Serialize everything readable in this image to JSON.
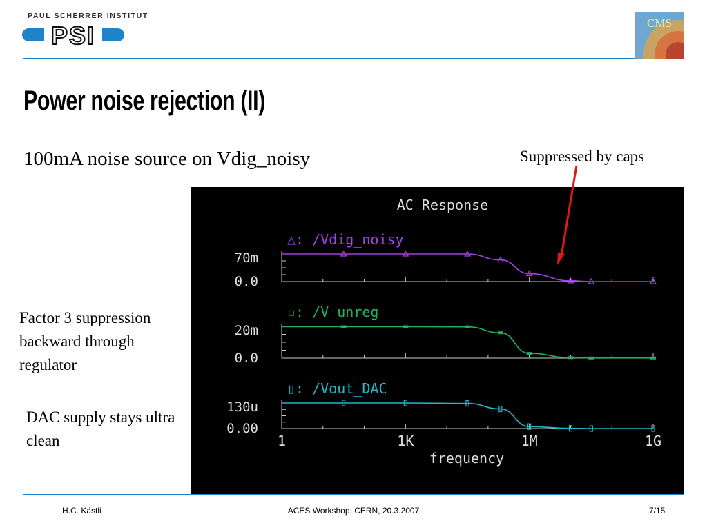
{
  "header": {
    "org_name": "PAUL SCHERRER INSTITUT",
    "logo_text": "PSI",
    "cms_logo_text": "CMS"
  },
  "slide": {
    "title": "Power noise rejection (II)",
    "subtitle": "100mA noise source on Vdig_noisy",
    "callout": "Suppressed by caps",
    "note_1": "Factor 3 suppression backward through regulator",
    "note_2": "DAC supply stays ultra clean"
  },
  "chart_data": {
    "type": "line",
    "title": "AC Response",
    "xlabel": "frequency",
    "x_scale": "log",
    "x_ticks": [
      "1",
      "1K",
      "1M",
      "1G"
    ],
    "x_tick_values": [
      1,
      1000,
      1000000,
      1000000000
    ],
    "background": "#000000",
    "panels": [
      {
        "name": "/Vdig_noisy",
        "marker": "triangle",
        "color": "#a040e0",
        "y_top_label": "70m",
        "y_bottom_label": "0.0",
        "ylim": [
          0,
          0.07
        ],
        "x": [
          1,
          31.6,
          1000,
          31600,
          200000,
          1000000,
          10000000,
          31600000,
          1000000000
        ],
        "y": [
          0.07,
          0.07,
          0.07,
          0.07,
          0.055,
          0.02,
          0.002,
          0.0,
          0.0
        ]
      },
      {
        "name": "/V_unreg",
        "marker": "square",
        "color": "#22b05a",
        "y_top_label": "20m",
        "y_bottom_label": "0.0",
        "ylim": [
          0,
          0.02
        ],
        "x": [
          1,
          31.6,
          1000,
          31600,
          200000,
          1000000,
          10000000,
          31600000,
          1000000000
        ],
        "y": [
          0.0198,
          0.0198,
          0.0198,
          0.0197,
          0.016,
          0.003,
          0.0003,
          0.0001,
          0.0001
        ]
      },
      {
        "name": "/Vout_DAC",
        "marker": "rect",
        "color": "#20b8c8",
        "y_top_label": "130u",
        "y_bottom_label": "0.00",
        "ylim": [
          0,
          0.00013
        ],
        "x": [
          1,
          31.6,
          1000,
          31600,
          200000,
          1000000,
          10000000,
          31600000,
          1000000000
        ],
        "y": [
          0.00013,
          0.00013,
          0.00013,
          0.000128,
          0.0001,
          1e-05,
          1e-06,
          0.0,
          0.0
        ]
      }
    ]
  },
  "footer": {
    "author": "H.C. Kästli",
    "event": "ACES Workshop, CERN, 20.3.2007",
    "page": "7/15"
  }
}
